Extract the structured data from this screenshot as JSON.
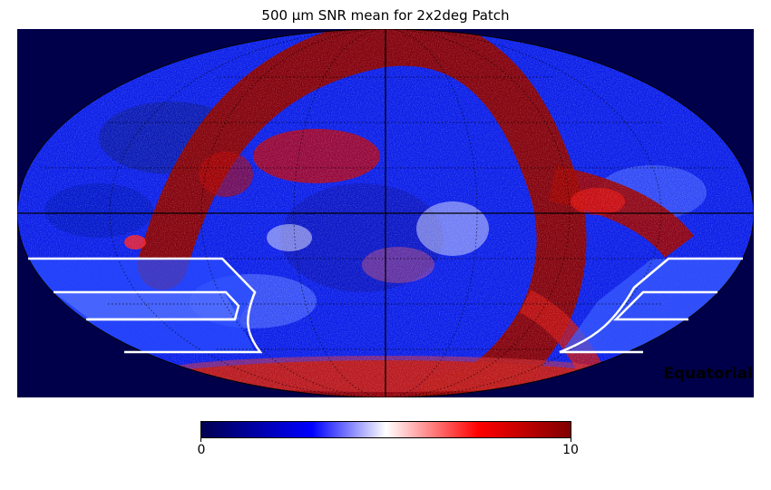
{
  "figure": {
    "title": "500 μm SNR mean for 2x2deg Patch",
    "coordinate_system": "Equatorial",
    "projection": "mollweide"
  },
  "colorbar": {
    "min_label": "0",
    "max_label": "10",
    "range": [
      0,
      10
    ],
    "colors": [
      "#000050",
      "#0000ff",
      "#ffffff",
      "#ff0000",
      "#800000"
    ]
  },
  "map": {
    "background_color": "#00004a",
    "graticule": "on",
    "overlay_regions_color": "#ffffff"
  }
}
